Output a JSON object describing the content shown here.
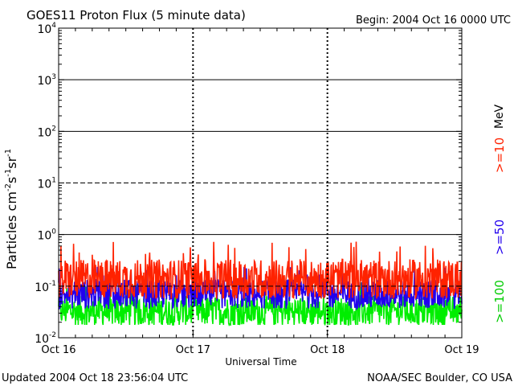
{
  "header": {
    "title": "GOES11 Proton Flux (5 minute data)",
    "begin": "Begin: 2004 Oct 16 0000 UTC"
  },
  "footer": {
    "updated": "Updated 2004 Oct 18 23:56:04 UTC",
    "credit": "NOAA/SEC Boulder, CO USA"
  },
  "chart_data": {
    "type": "line",
    "title": "GOES11 Proton Flux (5 minute data)",
    "xlabel": "Universal Time",
    "ylabel_base": "Particles cm",
    "ylabel_exp1": "-2",
    "ylabel_mid1": "s",
    "ylabel_exp2": "-1",
    "ylabel_mid2": "sr",
    "ylabel_exp3": "-1",
    "yscale": "log",
    "ylim": [
      0.01,
      10000
    ],
    "xlim": [
      "2004-10-16T00:00",
      "2004-10-19T00:00"
    ],
    "x_ticks": [
      "Oct 16",
      "Oct 17",
      "Oct 18",
      "Oct 19"
    ],
    "y_ticks": [
      {
        "base": "10",
        "exp": "-2"
      },
      {
        "base": "10",
        "exp": "-1"
      },
      {
        "base": "10",
        "exp": "0"
      },
      {
        "base": "10",
        "exp": "1"
      },
      {
        "base": "10",
        "exp": "2"
      },
      {
        "base": "10",
        "exp": "3"
      },
      {
        "base": "10",
        "exp": "4"
      }
    ],
    "threshold_lines": [
      {
        "value": 1000,
        "style": "solid"
      },
      {
        "value": 100,
        "style": "solid"
      },
      {
        "value": 10,
        "style": "dashed"
      },
      {
        "value": 1,
        "style": "solid"
      },
      {
        "value": 0.1,
        "style": "dashed"
      }
    ],
    "unit": "MeV",
    "series": [
      {
        "name": ">=10",
        "color": "#ff2200",
        "baseline": 0.15,
        "peak": 0.75
      },
      {
        "name": ">=50",
        "color": "#2200ee",
        "baseline": 0.075,
        "peak": 0.25
      },
      {
        "name": ">=100",
        "color": "#00ee00",
        "baseline": 0.035,
        "peak": 0.12
      }
    ]
  }
}
